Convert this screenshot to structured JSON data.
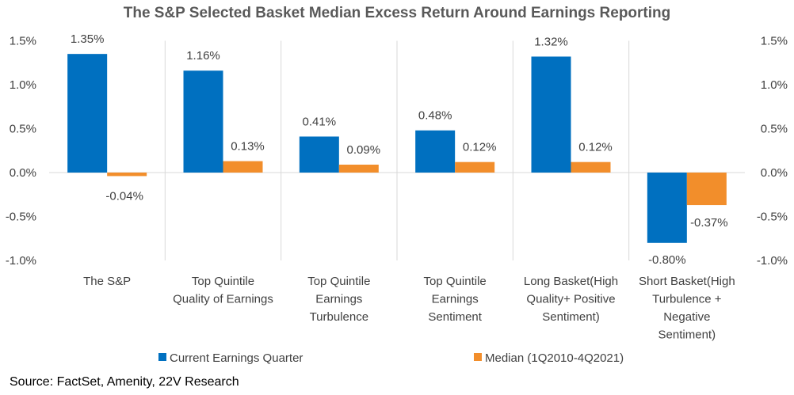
{
  "chart_data": {
    "type": "bar",
    "title": "The S&P Selected Basket Median Excess Return Around Earnings Reporting",
    "categories": [
      [
        "The S&P"
      ],
      [
        "Top Quintile",
        "Quality of Earnings"
      ],
      [
        "Top Quintile",
        "Earnings",
        "Turbulence"
      ],
      [
        "Top Quintile",
        "Earnings",
        "Sentiment"
      ],
      [
        "Long Basket(High",
        "Quality+ Positive",
        "Sentiment)"
      ],
      [
        "Short Basket(High",
        "Turbulence +",
        "Negative",
        "Sentiment)"
      ]
    ],
    "series": [
      {
        "name": "Current Earnings Quarter",
        "color": "#0070C0",
        "values": [
          1.35,
          1.16,
          0.41,
          0.48,
          1.32,
          -0.8
        ],
        "labels": [
          "1.35%",
          "1.16%",
          "0.41%",
          "0.48%",
          "1.32%",
          "-0.80%"
        ]
      },
      {
        "name": "Median (1Q2010-4Q2021)",
        "color": "#F28E2B",
        "values": [
          -0.04,
          0.13,
          0.09,
          0.12,
          0.12,
          -0.37
        ],
        "labels": [
          "-0.04%",
          "0.13%",
          "0.09%",
          "0.12%",
          "0.12%",
          "-0.37%"
        ]
      }
    ],
    "ylim": [
      -1.0,
      1.5
    ],
    "yticks": [
      1.5,
      1.0,
      0.5,
      0.0,
      -0.5,
      -1.0
    ],
    "ytick_labels": [
      "1.5%",
      "1.0%",
      "0.5%",
      "0.0%",
      "-0.5%",
      "-1.0%"
    ],
    "secondary_axis": true,
    "grid": false,
    "legend_position": "bottom"
  },
  "source": "Source: FactSet, Amenity, 22V Research"
}
